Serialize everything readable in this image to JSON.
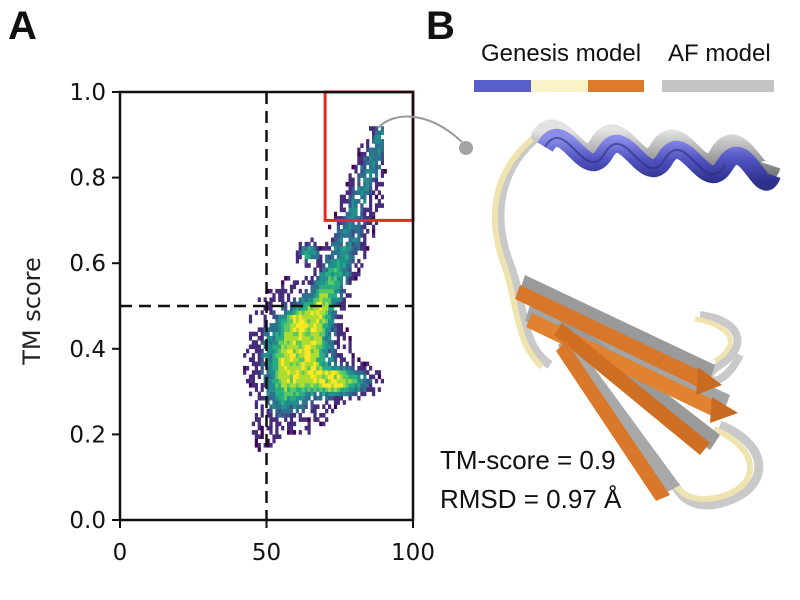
{
  "panel_a_letter": "A",
  "panel_b_letter": "B",
  "legend": {
    "genesis_label": "Genesis model",
    "af_label": "AF model",
    "genesis_colors": [
      "#5a5ec8",
      "#fbf3c8",
      "#de7a2c"
    ],
    "af_color": "#c4c4c4"
  },
  "stats": {
    "tm_score": "TM-score = 0.9",
    "rmsd": "RMSD = 0.97 Å"
  },
  "chart_data": {
    "type": "heatmap",
    "ylabel": "TM score",
    "xlabel": "",
    "xlim": [
      0,
      100
    ],
    "ylim": [
      0.0,
      1.0
    ],
    "x_ticks": [
      "0",
      "50",
      "100"
    ],
    "y_ticks": [
      "0.0",
      "0.2",
      "0.4",
      "0.6",
      "0.8",
      "1.0"
    ],
    "reference_lines": {
      "x": 50,
      "y": 0.5
    },
    "highlight_box": {
      "x": [
        70,
        100
      ],
      "y": [
        0.7,
        1.0
      ],
      "color": "#e32b22"
    },
    "density_region": [
      {
        "x": [
          40,
          60
        ],
        "y": [
          0.18,
          0.55
        ]
      },
      {
        "x": [
          52,
          85
        ],
        "y": [
          0.25,
          0.5
        ]
      },
      {
        "x": [
          60,
          88
        ],
        "y": [
          0.5,
          0.9
        ]
      }
    ],
    "hotspots": [
      {
        "x": 65,
        "y": 0.34
      },
      {
        "x": 72,
        "y": 0.32
      },
      {
        "x": 60,
        "y": 0.46
      },
      {
        "x": 64,
        "y": 0.62
      }
    ],
    "colormap": "viridis"
  }
}
